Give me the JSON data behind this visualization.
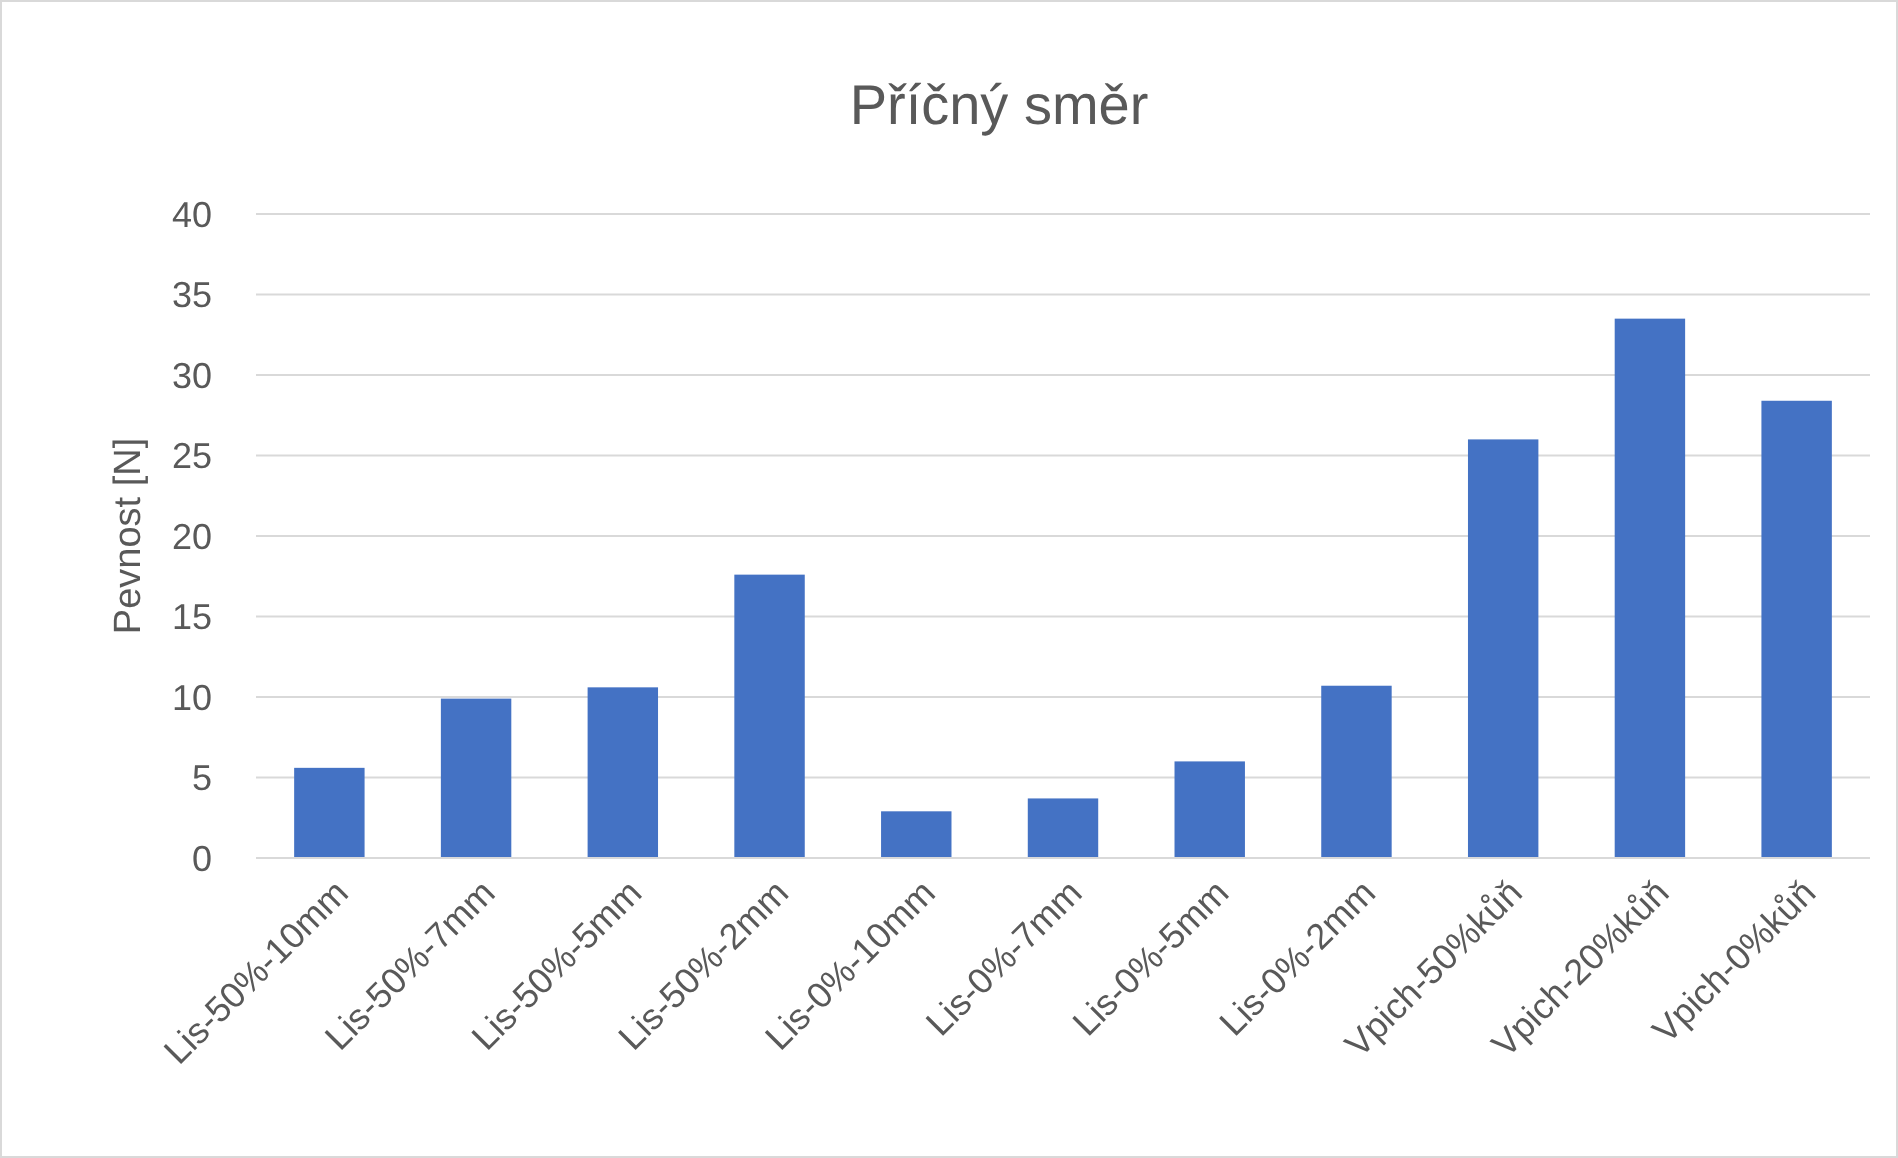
{
  "chart_data": {
    "type": "bar",
    "title": "Příčný směr",
    "ylabel": "Pevnost [N]",
    "categories": [
      "Lis-50%-10mm",
      "Lis-50%-7mm",
      "Lis-50%-5mm",
      "Lis-50%-2mm",
      "Lis-0%-10mm",
      "Lis-0%-7mm",
      "Lis-0%-5mm",
      "Lis-0%-2mm",
      "Vpich-50%kůň",
      "Vpich-20%kůň",
      "Vpich-0%kůň"
    ],
    "values": [
      5.6,
      9.9,
      10.6,
      17.6,
      2.9,
      3.7,
      6.0,
      10.7,
      26.0,
      33.5,
      28.4
    ],
    "color": "#4472c4",
    "ylim": [
      0,
      40
    ],
    "yticks": [
      0,
      5,
      10,
      15,
      20,
      25,
      30,
      35,
      40
    ],
    "grid": "y"
  }
}
